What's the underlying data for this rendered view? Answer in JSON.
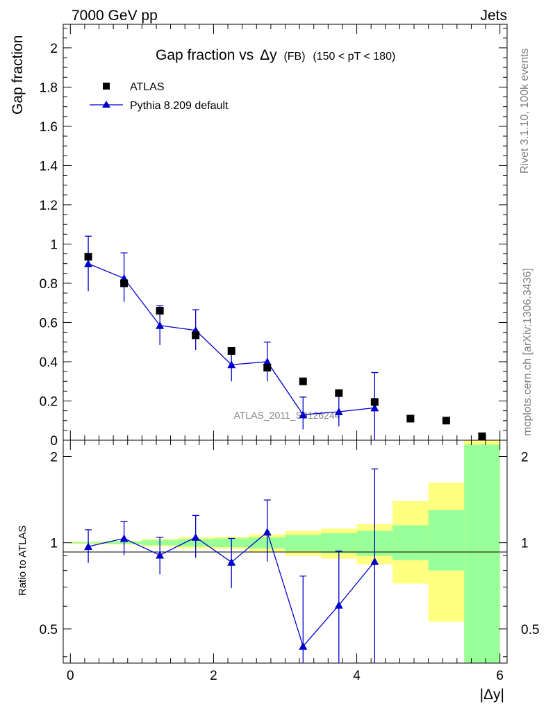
{
  "header": {
    "left_label": "7000 GeV pp",
    "right_label": "Jets"
  },
  "side_labels": {
    "rivet": "Rivet 3.1.10,  100k events",
    "mcplots": "mcplots.cern.ch [arXiv:1306.3436]"
  },
  "chart_data": [
    {
      "type": "scatter",
      "title_main": "Gap fraction vs",
      "title_symbol": "Δy",
      "title_sub": "(FB)",
      "title_range": "(150 < pT < 180)",
      "ylabel": "Gap fraction",
      "watermark": "ATLAS_2011_S9126244",
      "ylim": [
        0,
        2.12
      ],
      "xlim": [
        -0.1,
        6.1
      ],
      "yticks": [
        0,
        0.2,
        0.4,
        0.6,
        0.8,
        1,
        1.2,
        1.4,
        1.6,
        1.8,
        2
      ],
      "ytick_labels": [
        "0",
        "0.2",
        "0.4",
        "0.6",
        "0.8",
        "1",
        "1.2",
        "1.4",
        "1.6",
        "1.8",
        "2"
      ],
      "series": [
        {
          "name": "ATLAS",
          "marker": "square",
          "color": "#000000",
          "x": [
            0.25,
            0.75,
            1.25,
            1.75,
            2.25,
            2.75,
            3.25,
            3.75,
            4.25,
            4.75,
            5.25,
            5.75
          ],
          "y": [
            0.935,
            0.8,
            0.66,
            0.535,
            0.455,
            0.37,
            0.3,
            0.24,
            0.195,
            0.11,
            0.1,
            0.02
          ]
        },
        {
          "name": "Pythia 8.209 default",
          "marker": "triangle",
          "color": "#0000cc",
          "x": [
            0.25,
            0.75,
            1.25,
            1.75,
            2.25,
            2.75,
            3.25,
            3.75,
            4.25
          ],
          "y": [
            0.9,
            0.825,
            0.585,
            0.56,
            0.385,
            0.4,
            0.13,
            0.145,
            0.165
          ],
          "err_low": [
            0.14,
            0.12,
            0.1,
            0.1,
            0.085,
            0.1,
            0.075,
            0.075,
            0.3
          ],
          "err_high": [
            0.14,
            0.13,
            0.1,
            0.105,
            0.085,
            0.1,
            0.09,
            0.095,
            0.18
          ]
        }
      ]
    },
    {
      "type": "scatter",
      "ylabel": "Ratio to ATLAS",
      "xlabel": "|Δy|",
      "ylim": [
        0.38,
        2.28
      ],
      "xlim": [
        -0.1,
        6.1
      ],
      "xticks": [
        0,
        2,
        4,
        6
      ],
      "xtick_labels": [
        "0",
        "2",
        "4",
        "6"
      ],
      "yticks": [
        0.5,
        1,
        2
      ],
      "ytick_labels": [
        "0.5",
        "1",
        "2"
      ],
      "bands": {
        "edges": [
          0,
          0.5,
          1,
          1.5,
          2,
          2.5,
          3,
          3.5,
          4,
          4.5,
          5,
          5.5,
          6
        ],
        "yellow_low": [
          0.99,
          0.985,
          0.97,
          0.955,
          0.95,
          0.93,
          0.9,
          0.88,
          0.84,
          0.72,
          0.53,
          0.3
        ],
        "yellow_high": [
          1.01,
          1.015,
          1.03,
          1.045,
          1.05,
          1.07,
          1.1,
          1.12,
          1.16,
          1.4,
          1.62,
          2.45
        ],
        "green_low": [
          0.995,
          0.99,
          0.98,
          0.97,
          0.965,
          0.955,
          0.935,
          0.92,
          0.9,
          0.87,
          0.8,
          0.3
        ],
        "green_high": [
          1.005,
          1.01,
          1.02,
          1.03,
          1.035,
          1.045,
          1.065,
          1.08,
          1.1,
          1.15,
          1.3,
          2.2
        ]
      },
      "series": [
        {
          "name": "Pythia 8.209 default",
          "marker": "triangle",
          "color": "#0000cc",
          "x": [
            0.25,
            0.75,
            1.25,
            1.75,
            2.25,
            2.75,
            3.25,
            3.75,
            4.25
          ],
          "y": [
            0.97,
            1.035,
            0.905,
            1.045,
            0.855,
            1.09,
            0.435,
            0.605,
            0.86
          ],
          "err_low": [
            0.12,
            0.13,
            0.13,
            0.16,
            0.16,
            0.23,
            0.35,
            0.5,
            0.7
          ],
          "err_high": [
            0.14,
            0.15,
            0.14,
            0.2,
            0.18,
            0.32,
            0.33,
            0.33,
            0.95
          ]
        }
      ]
    }
  ],
  "colors": {
    "yellow_band": "#ffff80",
    "green_band": "#99ff99",
    "mc_line": "#0000cc",
    "data_marker": "#000000"
  }
}
